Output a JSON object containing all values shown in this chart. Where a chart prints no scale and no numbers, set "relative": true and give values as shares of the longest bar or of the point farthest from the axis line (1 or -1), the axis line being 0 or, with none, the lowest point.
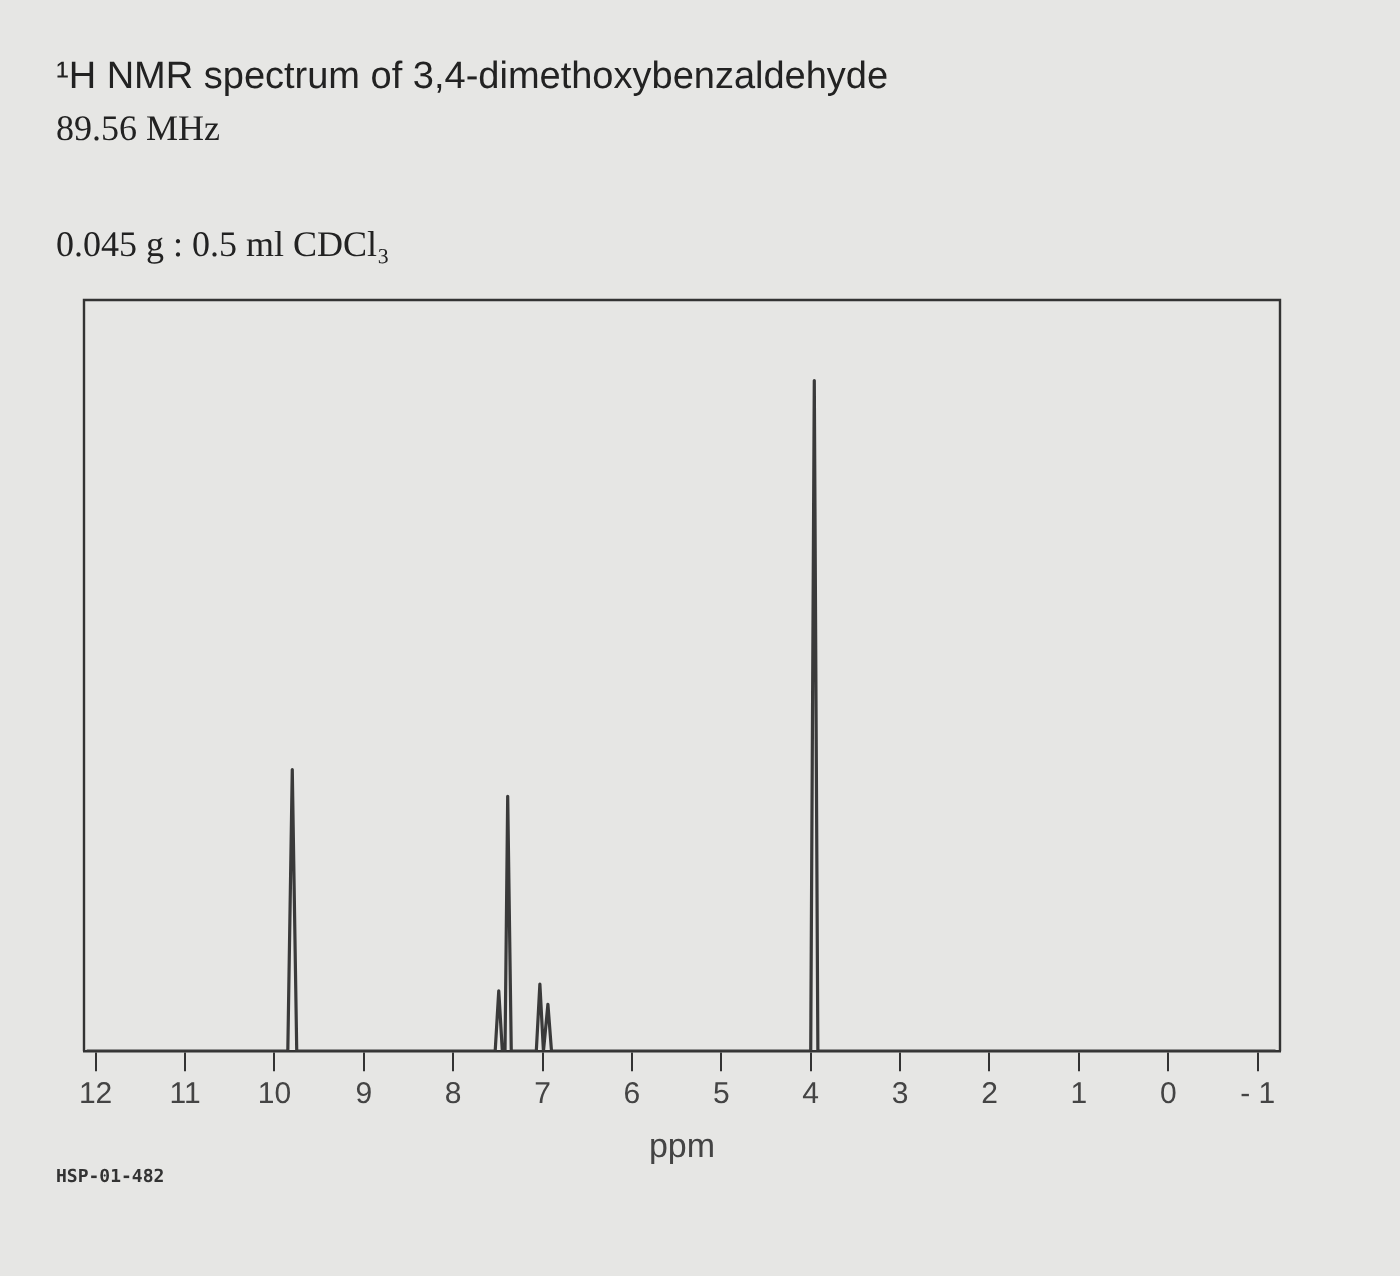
{
  "chart_data": {
    "type": "line",
    "title": "¹H NMR spectrum of 3,4-dimethoxybenzaldehyde",
    "subtitle": "89.56 MHz",
    "xlabel": "ppm",
    "annotations": [
      "0.045 g : 0.5 ml CDCl₃",
      "HSP-01-482"
    ],
    "relative": true,
    "legend": false,
    "marker": "none",
    "xlim": [
      12.13,
      -1.25
    ],
    "xticks": [
      12,
      11,
      10,
      9,
      8,
      7,
      6,
      5,
      4,
      3,
      2,
      1,
      0,
      {
        "value": -1,
        "label": "- 1"
      }
    ],
    "series": [
      {
        "color": "#3a3a3a",
        "x": [
          12.1,
          9.85,
          9.8,
          9.75,
          7.53,
          7.49,
          7.45,
          7.42,
          7.39,
          7.35,
          7.07,
          7.03,
          6.99,
          6.94,
          6.9,
          4.0,
          3.96,
          3.92,
          -1.2
        ],
        "values": [
          0,
          0,
          0.42,
          0,
          0,
          0.09,
          0,
          0,
          0.38,
          0,
          0,
          0.1,
          0,
          0.07,
          0,
          0,
          1,
          0,
          0
        ]
      }
    ]
  }
}
